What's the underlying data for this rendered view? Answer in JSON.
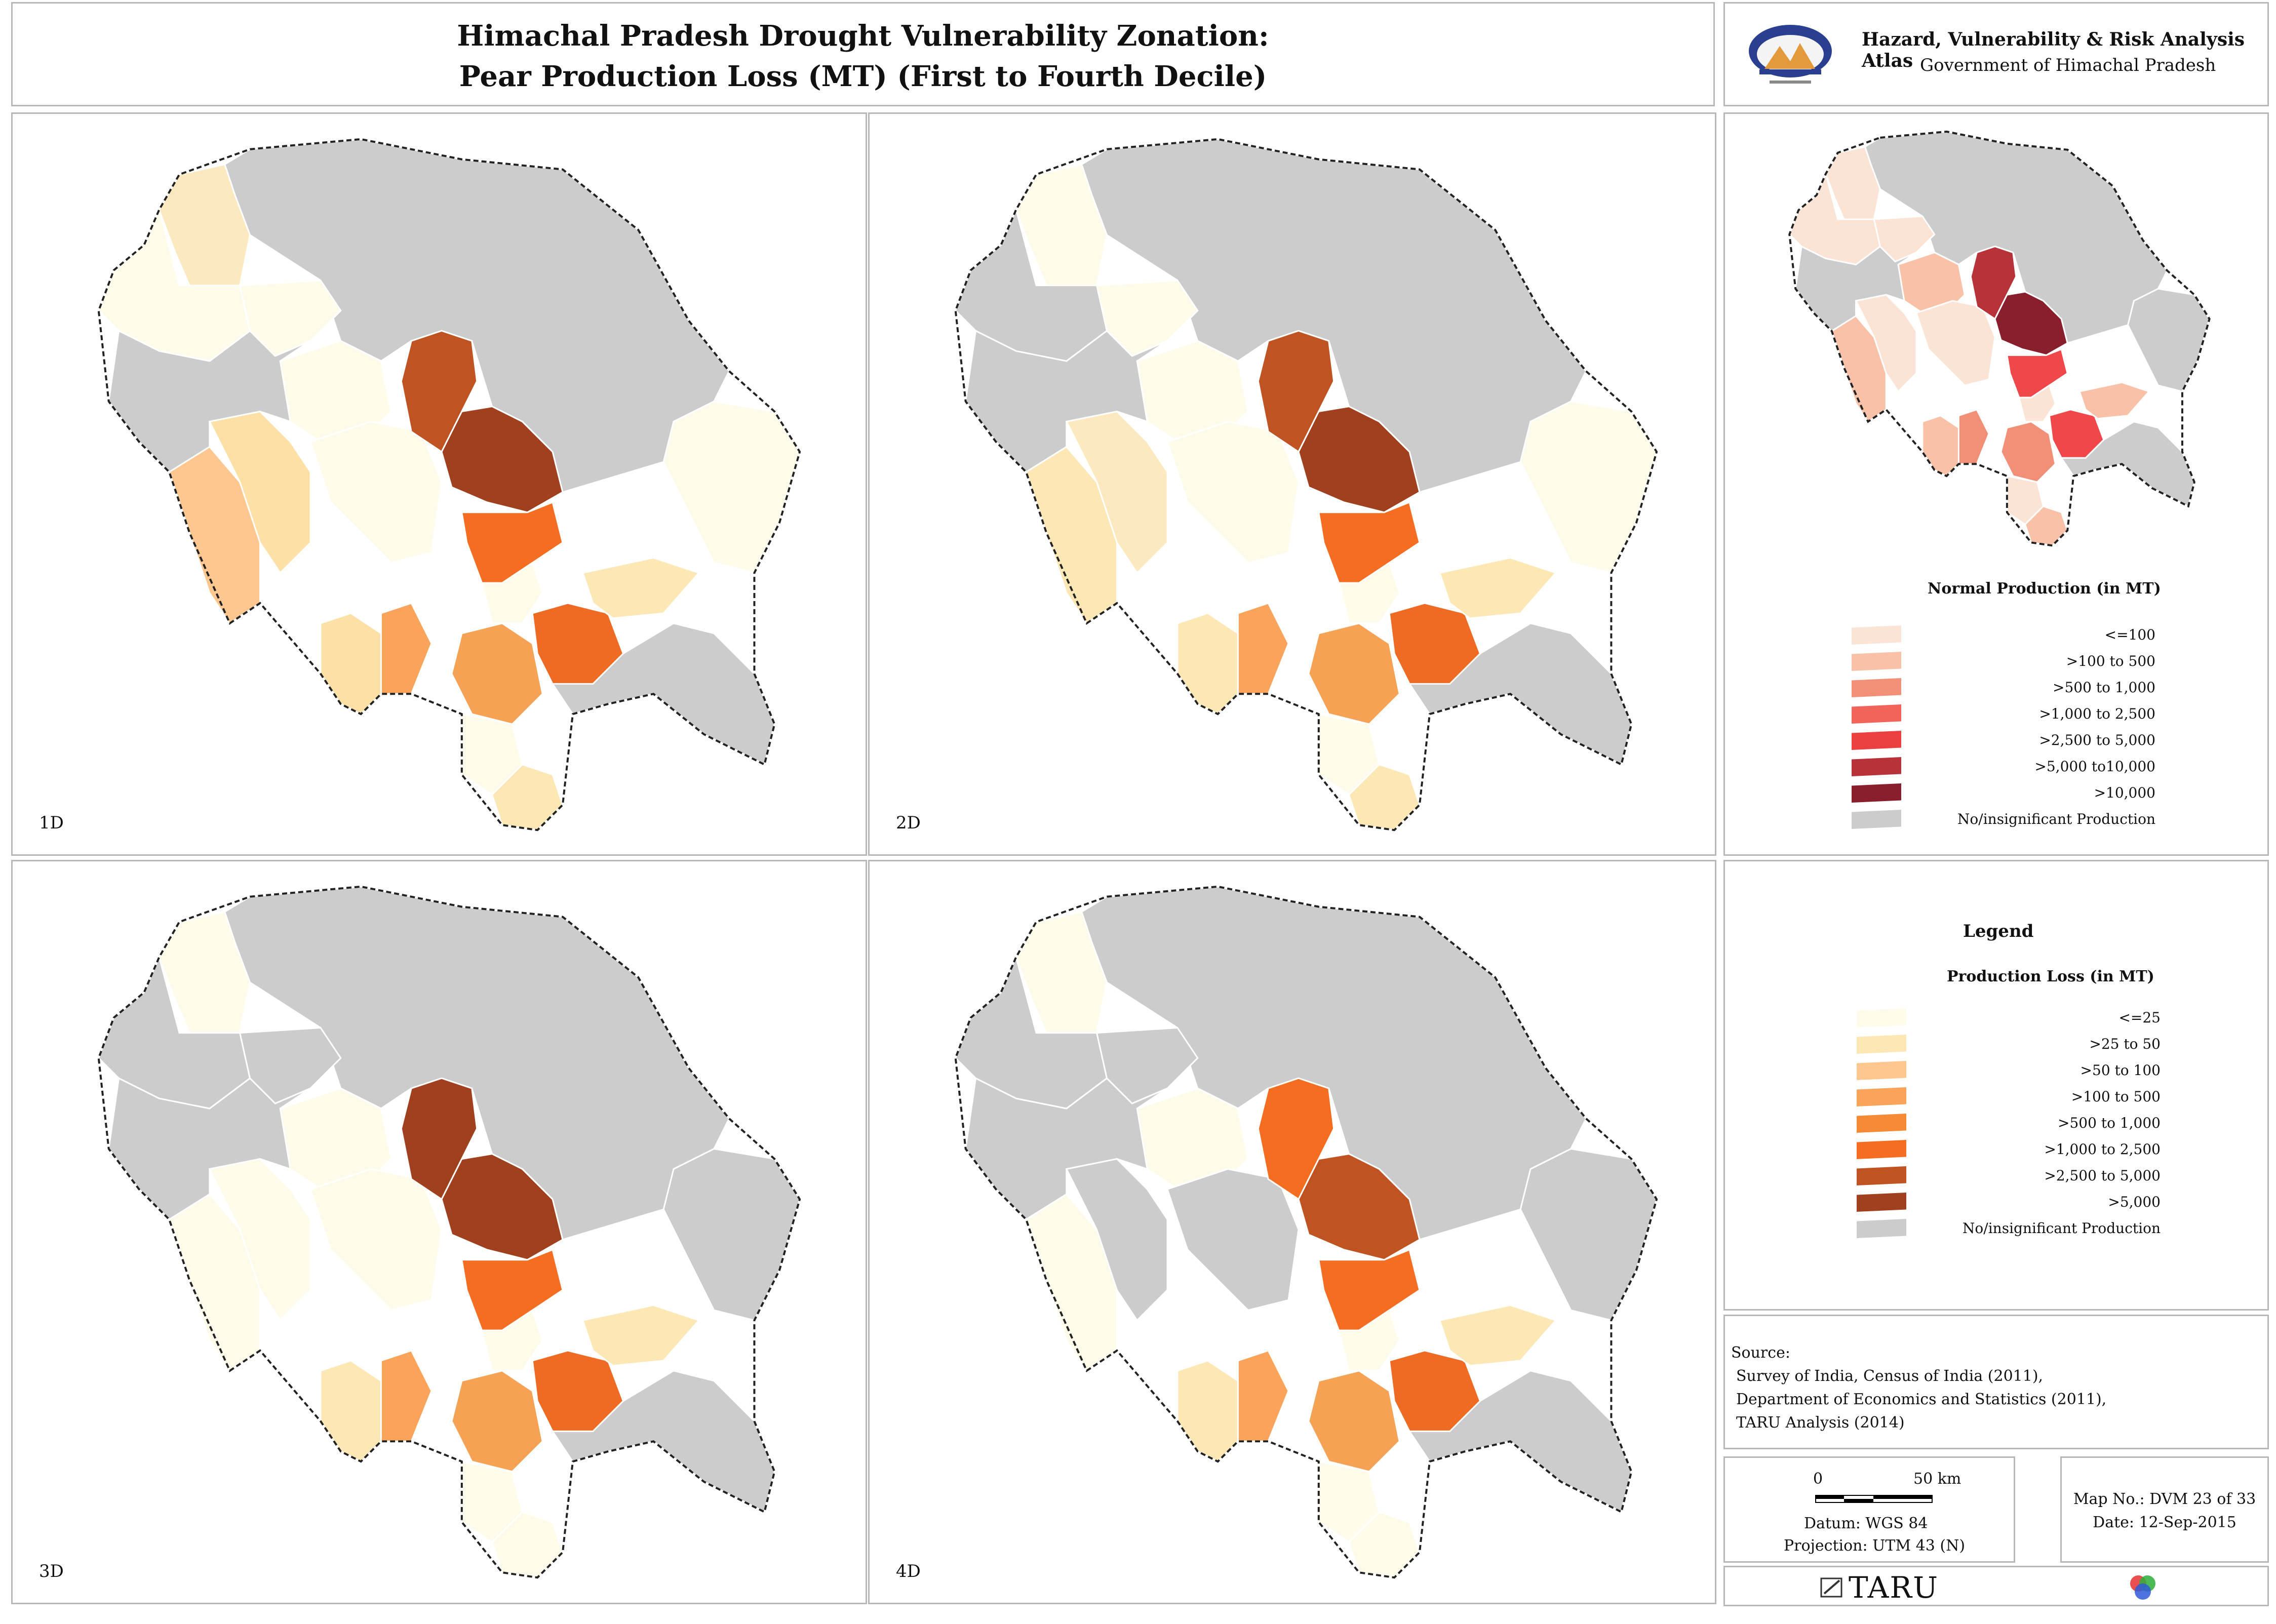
{
  "header": {
    "title_line1": "Himachal Pradesh Drought Vulnerability Zonation:",
    "title_line2": "Pear Production Loss (MT) (First to Fourth Decile)",
    "atlas_title": "Hazard, Vulnerability & Risk Analysis Atlas",
    "atlas_subtitle": "Government of Himachal Pradesh"
  },
  "maps": [
    {
      "label": "1D",
      "colors": {
        "NW": "#fde9bf",
        "W1": "#fffbeb",
        "W2": "#fffbeb",
        "W3": "#fdc78f",
        "W4": "#fde0a6",
        "C1": "#fffbeb",
        "C2": "#fffbeb",
        "K1": "#bf5422",
        "K2": "#a0401f",
        "K3": "#f46d21",
        "KS": "#fffbeb",
        "S1": "#fde0a6",
        "S2": "#f9a45a",
        "S3": "#f6a254",
        "S4": "#ef6a23",
        "S5": "#fde7b5",
        "S6": "#fffbeb",
        "S7": "#fde7b5",
        "E1": "#fffbeb",
        "G1": "#cccccc",
        "G2": "#cccccc",
        "G3": "#cccccc"
      }
    },
    {
      "label": "2D",
      "colors": {
        "NW": "#fffbeb",
        "W1": "#cccccc",
        "W2": "#fffbeb",
        "W3": "#fde7b5",
        "W4": "#fde9bf",
        "C1": "#fffbeb",
        "C2": "#fffbeb",
        "K1": "#bf5422",
        "K2": "#a0401f",
        "K3": "#f46d21",
        "KS": "#fffbeb",
        "S1": "#fde7b5",
        "S2": "#f9a45a",
        "S3": "#f6a254",
        "S4": "#ef6a23",
        "S5": "#fde7b5",
        "S6": "#fffbeb",
        "S7": "#fde7b5",
        "E1": "#fffbeb",
        "G1": "#cccccc",
        "G2": "#cccccc",
        "G3": "#cccccc"
      }
    },
    {
      "label": "3D",
      "colors": {
        "NW": "#fffbeb",
        "W1": "#cccccc",
        "W2": "#cccccc",
        "W3": "#fffbeb",
        "W4": "#fffbeb",
        "C1": "#fffbeb",
        "C2": "#fffbeb",
        "K1": "#a0401f",
        "K2": "#a0401f",
        "K3": "#f46d21",
        "KS": "#fffbeb",
        "S1": "#fde7b5",
        "S2": "#f9a45a",
        "S3": "#f6a254",
        "S4": "#ef6a23",
        "S5": "#fde7b5",
        "S6": "#fffbeb",
        "S7": "#fffbeb",
        "E1": "#cccccc",
        "G1": "#cccccc",
        "G2": "#cccccc",
        "G3": "#cccccc"
      }
    },
    {
      "label": "4D",
      "colors": {
        "NW": "#fffbeb",
        "W1": "#cccccc",
        "W2": "#cccccc",
        "W3": "#fffbeb",
        "W4": "#cccccc",
        "C1": "#fffbeb",
        "C2": "#cccccc",
        "K1": "#f46d21",
        "K2": "#bf5422",
        "K3": "#f46d21",
        "KS": "#fffbeb",
        "S1": "#fde7b5",
        "S2": "#f9a45a",
        "S3": "#f6a254",
        "S4": "#ef6a23",
        "S5": "#fde7b5",
        "S6": "#fffbeb",
        "S7": "#fffbeb",
        "E1": "#cccccc",
        "G1": "#cccccc",
        "G2": "#cccccc",
        "G3": "#cccccc"
      }
    }
  ],
  "inset": {
    "colors": {
      "NW": "#fbe4d6",
      "W1": "#fbe4d6",
      "W2": "#fbe4d6",
      "W3": "#f9c2a8",
      "W4": "#fbe4d6",
      "C1": "#f9c2a8",
      "C2": "#fbe4d6",
      "K1": "#b8323a",
      "K2": "#891e2d",
      "K3": "#f0474a",
      "KS": "#fbe4d6",
      "S1": "#f9c2a8",
      "S2": "#f29077",
      "S3": "#f29077",
      "S4": "#f0474a",
      "S5": "#f9c2a8",
      "S6": "#fbe4d6",
      "S7": "#f9c2a8",
      "E1": "#cccccc",
      "G1": "#cccccc",
      "G2": "#cccccc",
      "G3": "#cccccc"
    },
    "legend_title": "Normal Production (in MT)",
    "legend": [
      {
        "label": "<=100",
        "color": "#fbe4d6"
      },
      {
        "label": ">100 to 500",
        "color": "#f9c2a8"
      },
      {
        "label": ">500 to 1,000",
        "color": "#f29077"
      },
      {
        "label": ">1,000 to 2,500",
        "color": "#f0645a"
      },
      {
        "label": ">2,500 to 5,000",
        "color": "#ec3f3f"
      },
      {
        "label": ">5,000 to10,000",
        "color": "#b8323a"
      },
      {
        "label": ">10,000",
        "color": "#891e2d"
      },
      {
        "label": "No/insignificant Production",
        "color": "#cccccc"
      }
    ]
  },
  "legend": {
    "heading": "Legend",
    "title": "Production Loss (in MT)",
    "items": [
      {
        "label": "<=25",
        "color": "#fffbeb"
      },
      {
        "label": ">25 to 50",
        "color": "#fde7b5"
      },
      {
        "label": ">50 to 100",
        "color": "#fdc78f"
      },
      {
        "label": ">100 to 500",
        "color": "#f9a45a"
      },
      {
        "label": ">500 to 1,000",
        "color": "#f58b36"
      },
      {
        "label": ">1,000 to 2,500",
        "color": "#f46d21"
      },
      {
        "label": ">2,500 to 5,000",
        "color": "#bf5422"
      },
      {
        "label": ">5,000",
        "color": "#a0401f"
      },
      {
        "label": "No/insignificant Production",
        "color": "#cccccc"
      }
    ]
  },
  "source": {
    "heading": "Source:",
    "lines": [
      "Survey of India, Census of India (2011),",
      "Department of Economics and Statistics (2011),",
      "TARU Analysis (2014)"
    ]
  },
  "scale": {
    "start": "0",
    "end": "50 km",
    "datum": "Datum: WGS 84",
    "projection": "Projection: UTM 43 (N)"
  },
  "map_info": {
    "map_no": "Map No.: DVM 23 of 33",
    "date": "Date: 12-Sep-2015"
  },
  "footer": {
    "brand": "TARU"
  }
}
